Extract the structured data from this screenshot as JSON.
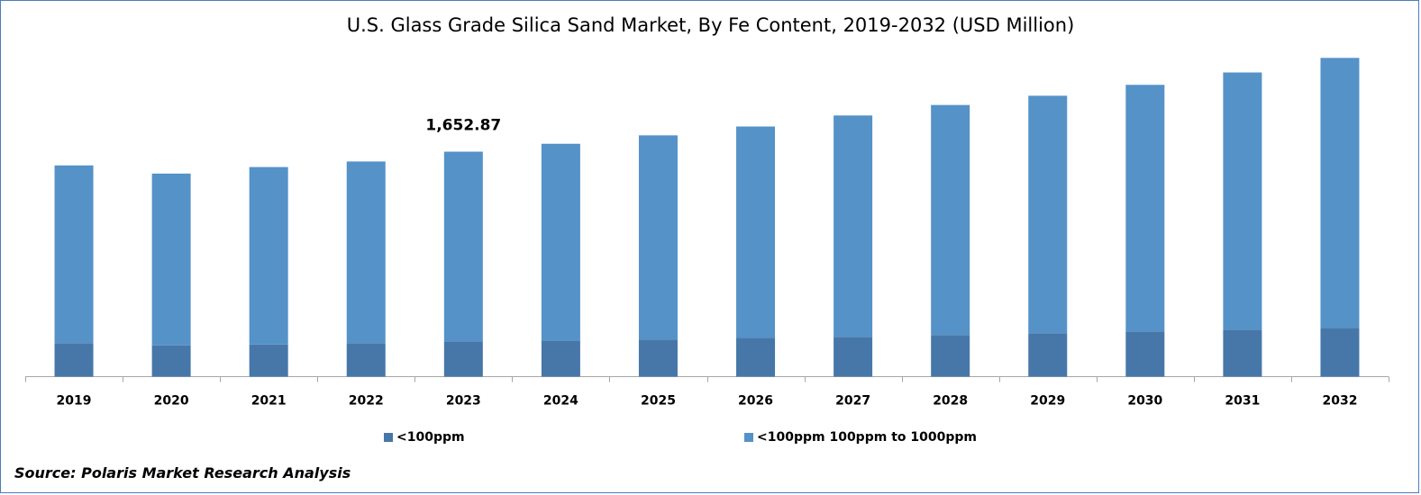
{
  "chart_data": {
    "type": "bar",
    "stacked": true,
    "title": "U.S. Glass Grade Silica Sand Market, By Fe Content, 2019-2032 (USD Million)",
    "categories": [
      "2019",
      "2020",
      "2021",
      "2022",
      "2023",
      "2024",
      "2025",
      "2026",
      "2027",
      "2028",
      "2029",
      "2030",
      "2031",
      "2032"
    ],
    "series": [
      {
        "name": "<100ppm",
        "color": "#4677a8",
        "values": [
          246,
          230,
          236,
          246,
          259,
          266,
          272,
          285,
          292,
          306,
          319,
          332,
          345,
          359
        ]
      },
      {
        "name": "<100ppm 100ppm to 1000ppm",
        "color": "#5592c8",
        "values": [
          1306,
          1262,
          1304,
          1335,
          1394,
          1445,
          1501,
          1553,
          1627,
          1690,
          1745,
          1812,
          1890,
          1983
        ]
      }
    ],
    "data_labels": [
      {
        "category": "2023",
        "text": "1,652.87"
      }
    ],
    "ylim": [
      0,
      2450
    ],
    "grid": false,
    "legend_position": "bottom",
    "source": "Source: Polaris Market Research Analysis"
  }
}
